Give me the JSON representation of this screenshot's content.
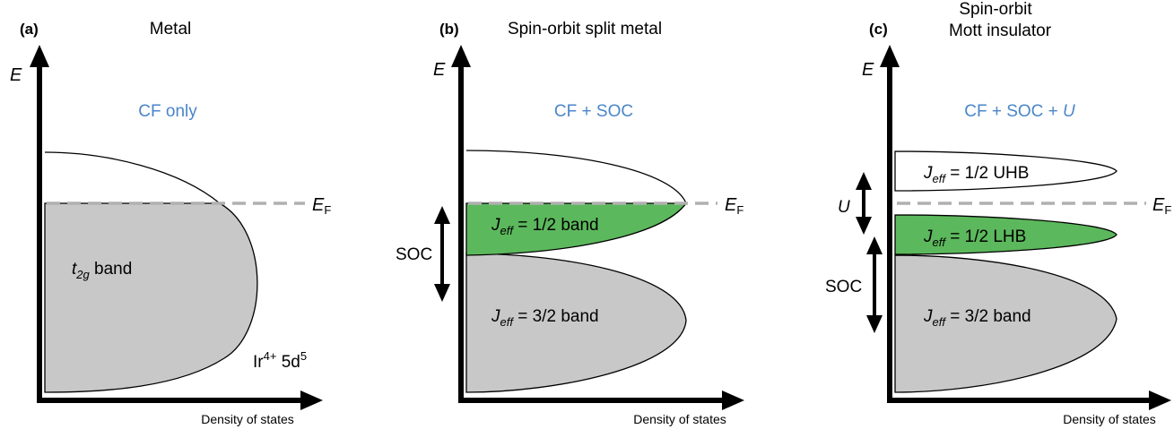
{
  "colors": {
    "axis": "#000000",
    "gray_band": "#c8c8c8",
    "green_band": "#5cb85c",
    "fermi_line": "#b0b0b0",
    "approximation_text": "#4a86c8"
  },
  "panels": [
    {
      "label": "(a)",
      "title_lines": [
        "Metal"
      ],
      "approximation": "CF only",
      "y_axis_label": "E",
      "x_axis_label": "Density of states",
      "fermi_label": "E",
      "fermi_sub": "F",
      "band_label": "t",
      "band_label_sub": "2g",
      "band_label_rest": " band",
      "ion_label": "Ir",
      "ion_sup": "4+",
      "config_label": " 5d",
      "config_sup": "5"
    },
    {
      "label": "(b)",
      "title_lines": [
        "Spin-orbit split metal"
      ],
      "approximation": "CF + SOC",
      "y_axis_label": "E",
      "x_axis_label": "Density of states",
      "fermi_label": "E",
      "fermi_sub": "F",
      "soc_label": "SOC",
      "bands": [
        {
          "j": "J",
          "j_sub": "eff",
          "text": " = 1/2 band"
        },
        {
          "j": "J",
          "j_sub": "eff",
          "text": " = 3/2 band"
        }
      ]
    },
    {
      "label": "(c)",
      "title_lines": [
        "Spin-orbit",
        "Mott insulator"
      ],
      "approximation_prefix": "CF + SOC + ",
      "approximation_u": "U",
      "y_axis_label": "E",
      "x_axis_label": "Density of states",
      "fermi_label": "E",
      "fermi_sub": "F",
      "u_label": "U",
      "soc_label": "SOC",
      "bands": [
        {
          "j": "J",
          "j_sub": "eff",
          "text": " = 1/2 UHB"
        },
        {
          "j": "J",
          "j_sub": "eff",
          "text": " = 1/2 LHB"
        },
        {
          "j": "J",
          "j_sub": "eff",
          "text": " = 3/2 band"
        }
      ]
    }
  ]
}
